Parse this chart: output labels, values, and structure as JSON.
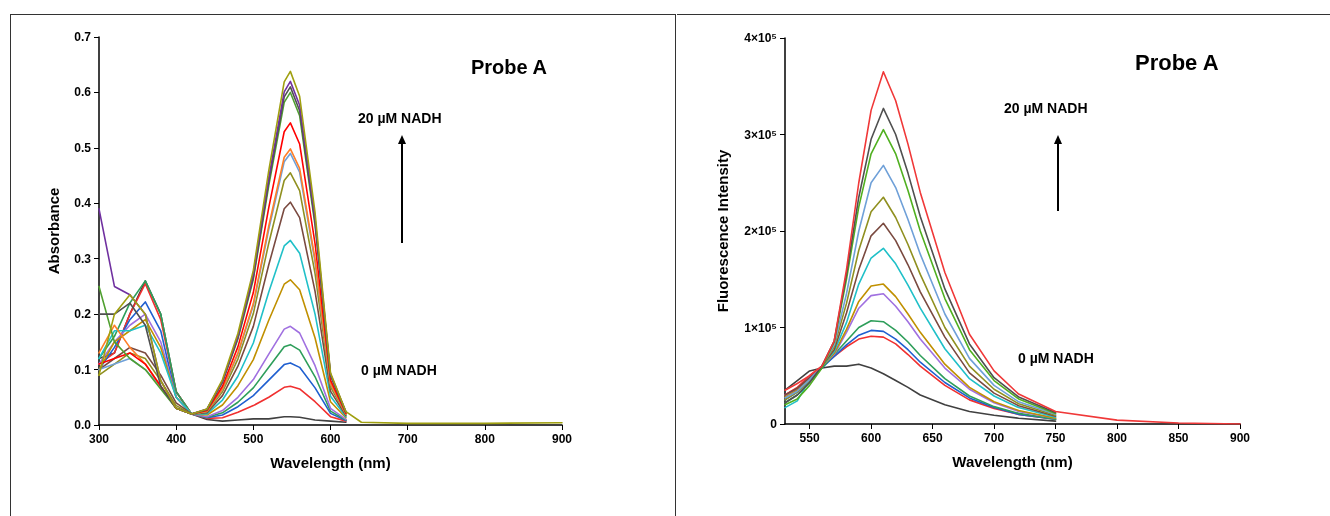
{
  "chart_data": [
    {
      "type": "line",
      "xlabel": "Wavelength (nm)",
      "ylabel": "Absorbance",
      "annotations": [
        "Probe A",
        "20 µM NADH",
        "0 µM NADH"
      ],
      "xlim": [
        300,
        900
      ],
      "xticks": [
        300,
        400,
        500,
        600,
        700,
        800,
        900
      ],
      "ylim": [
        0,
        0.7
      ],
      "yticks": [
        {
          "value": 0,
          "label": "0.0"
        },
        0.1,
        0.2,
        0.3,
        0.4,
        0.5,
        0.6,
        0.7
      ],
      "grid": false,
      "marker": "none",
      "line_style": "solid",
      "x": [
        300,
        320,
        340,
        360,
        380,
        400,
        420,
        440,
        460,
        480,
        500,
        520,
        540,
        548,
        560,
        580,
        600,
        620,
        640,
        700,
        800,
        900
      ],
      "series": [
        {
          "color": "#404040",
          "values": [
            0.12,
            0.13,
            0.2,
            0.26,
            0.2,
            0.06,
            0.02,
            0.01,
            0.007,
            0.009,
            0.011,
            0.011,
            0.015,
            0.015,
            0.014,
            0.009,
            0.007,
            0.005,
            null,
            null,
            null,
            null
          ]
        },
        {
          "color": "#f03030",
          "values": [
            0.11,
            0.13,
            0.2,
            0.255,
            0.19,
            0.06,
            0.02,
            0.012,
            0.013,
            0.023,
            0.035,
            0.05,
            0.068,
            0.07,
            0.065,
            0.042,
            0.015,
            0.007,
            null,
            null,
            null,
            null
          ]
        },
        {
          "color": "#1f5fd0",
          "values": [
            0.1,
            0.14,
            0.19,
            0.222,
            0.17,
            0.05,
            0.02,
            0.013,
            0.018,
            0.033,
            0.053,
            0.081,
            0.109,
            0.112,
            0.104,
            0.067,
            0.021,
            0.008,
            null,
            null,
            null,
            null
          ]
        },
        {
          "color": "#2e9e5a",
          "values": [
            0.12,
            0.16,
            0.22,
            0.26,
            0.2,
            0.06,
            0.02,
            0.014,
            0.022,
            0.041,
            0.067,
            0.104,
            0.141,
            0.145,
            0.135,
            0.087,
            0.025,
            0.009,
            null,
            null,
            null,
            null
          ]
        },
        {
          "color": "#a070e0",
          "values": [
            0.11,
            0.15,
            0.18,
            0.2,
            0.15,
            0.05,
            0.02,
            0.015,
            0.026,
            0.05,
            0.082,
            0.128,
            0.173,
            0.178,
            0.166,
            0.107,
            0.03,
            0.01,
            null,
            null,
            null,
            null
          ]
        },
        {
          "color": "#c09000",
          "values": [
            0.1,
            0.15,
            0.17,
            0.19,
            0.14,
            0.05,
            0.02,
            0.018,
            0.036,
            0.071,
            0.118,
            0.189,
            0.254,
            0.262,
            0.244,
            0.157,
            0.042,
            0.013,
            null,
            null,
            null,
            null
          ]
        },
        {
          "color": "#20c0c8",
          "values": [
            0.12,
            0.17,
            0.17,
            0.18,
            0.13,
            0.05,
            0.02,
            0.02,
            0.045,
            0.088,
            0.148,
            0.24,
            0.323,
            0.333,
            0.31,
            0.2,
            0.052,
            0.015,
            null,
            null,
            null,
            null
          ]
        },
        {
          "color": "#7a4a40",
          "values": [
            0.1,
            0.12,
            0.14,
            0.13,
            0.09,
            0.04,
            0.02,
            0.022,
            0.053,
            0.106,
            0.178,
            0.289,
            0.39,
            0.402,
            0.374,
            0.241,
            0.061,
            0.017,
            null,
            null,
            null,
            null
          ]
        },
        {
          "color": "#909020",
          "values": [
            0.09,
            0.11,
            0.13,
            0.12,
            0.08,
            0.035,
            0.02,
            0.024,
            0.06,
            0.119,
            0.201,
            0.328,
            0.441,
            0.455,
            0.423,
            0.273,
            0.069,
            0.019,
            null,
            null,
            null,
            null
          ]
        },
        {
          "color": "#6fa0d8",
          "values": [
            0.1,
            0.11,
            0.12,
            0.1,
            0.07,
            0.03,
            0.02,
            0.025,
            0.064,
            0.128,
            0.216,
            0.353,
            0.475,
            0.49,
            0.456,
            0.294,
            0.074,
            0.02,
            null,
            null,
            null,
            null
          ]
        },
        {
          "color": "#ff7f27",
          "values": [
            0.13,
            0.18,
            0.14,
            0.11,
            0.07,
            0.03,
            0.02,
            0.025,
            0.065,
            0.13,
            0.219,
            0.359,
            0.483,
            0.498,
            0.463,
            0.299,
            0.075,
            0.02,
            null,
            null,
            null,
            null
          ]
        },
        {
          "color": "#ff0000",
          "values": [
            0.11,
            0.12,
            0.13,
            0.11,
            0.07,
            0.03,
            0.02,
            0.026,
            0.07,
            0.141,
            0.239,
            0.392,
            0.529,
            0.545,
            0.507,
            0.327,
            0.081,
            0.021,
            null,
            null,
            null,
            null
          ]
        },
        {
          "color": "#50a030",
          "values": [
            0.25,
            0.15,
            0.12,
            0.1,
            0.065,
            0.03,
            0.02,
            0.028,
            0.077,
            0.155,
            0.263,
            0.432,
            0.582,
            0.6,
            0.558,
            0.36,
            0.089,
            0.023,
            null,
            null,
            null,
            null
          ]
        },
        {
          "color": "#505050",
          "values": [
            0.2,
            0.2,
            0.22,
            0.18,
            0.07,
            0.03,
            0.02,
            0.028,
            0.078,
            0.158,
            0.267,
            0.439,
            0.592,
            0.61,
            0.567,
            0.366,
            0.09,
            0.023,
            null,
            null,
            null,
            null
          ]
        },
        {
          "color": "#7030a0",
          "values": [
            0.39,
            0.25,
            0.235,
            0.2,
            0.08,
            0.03,
            0.02,
            0.029,
            0.079,
            0.16,
            0.272,
            0.446,
            0.601,
            0.62,
            0.577,
            0.372,
            0.092,
            0.024,
            null,
            null,
            null,
            null
          ]
        },
        {
          "color": "#a0a010",
          "values": [
            0.09,
            0.2,
            0.235,
            0.2,
            0.08,
            0.03,
            0.02,
            0.029,
            0.082,
            0.165,
            0.279,
            0.459,
            0.619,
            0.638,
            0.593,
            0.383,
            0.094,
            0.024,
            0.005,
            0.003,
            0.003,
            0.004
          ]
        }
      ]
    },
    {
      "type": "line",
      "xlabel": "Wavelength (nm)",
      "ylabel": "Fluorescence Intensity",
      "annotations": [
        "Probe A",
        "20 µM NADH",
        "0 µM NADH"
      ],
      "xlim": [
        530,
        900
      ],
      "xticks": [
        550,
        600,
        650,
        700,
        750,
        800,
        850,
        900
      ],
      "ylim": [
        0,
        400000
      ],
      "yticks": [
        0,
        {
          "value": 100000,
          "label": "1×10⁵"
        },
        {
          "value": 200000,
          "label": "2×10⁵"
        },
        {
          "value": 300000,
          "label": "3×10⁵"
        },
        {
          "value": 400000,
          "label": "4×10⁵"
        }
      ],
      "grid": false,
      "marker": "none",
      "line_style": "solid",
      "x": [
        530,
        540,
        550,
        560,
        570,
        580,
        590,
        600,
        610,
        620,
        630,
        640,
        660,
        680,
        700,
        720,
        750,
        800,
        850,
        900
      ],
      "series": [
        {
          "color": "#404040",
          "values": [
            35000,
            45000,
            55000,
            58000,
            60000,
            60000,
            62000,
            58000,
            52000,
            45000,
            38000,
            30000,
            20000,
            13000,
            9000,
            6000,
            3000,
            null,
            null,
            null
          ]
        },
        {
          "color": "#f03030",
          "values": [
            30000,
            38000,
            50000,
            60000,
            70000,
            80000,
            88000,
            91000,
            90000,
            83000,
            72000,
            60000,
            40000,
            25000,
            16000,
            10000,
            5000,
            null,
            null,
            null
          ]
        },
        {
          "color": "#1f5fd0",
          "values": [
            25000,
            33000,
            45000,
            58000,
            70000,
            82000,
            92000,
            97000,
            96000,
            88000,
            77000,
            64000,
            43000,
            27000,
            17000,
            10000,
            5000,
            null,
            null,
            null
          ]
        },
        {
          "color": "#2e9e5a",
          "values": [
            22000,
            30000,
            43000,
            58000,
            72000,
            86000,
            100000,
            107000,
            106000,
            97000,
            85000,
            71000,
            47000,
            29000,
            18000,
            11000,
            5000,
            null,
            null,
            null
          ]
        },
        {
          "color": "#a070e0",
          "values": [
            30000,
            36000,
            48000,
            60000,
            72000,
            95000,
            120000,
            133000,
            135000,
            122000,
            106000,
            88000,
            58000,
            36000,
            22000,
            13000,
            6000,
            null,
            null,
            null
          ]
        },
        {
          "color": "#c09000",
          "values": [
            28000,
            35000,
            47000,
            60000,
            73000,
            98000,
            127000,
            143000,
            145000,
            132000,
            114000,
            95000,
            62000,
            38000,
            23000,
            14000,
            6000,
            null,
            null,
            null
          ]
        },
        {
          "color": "#20c0c8",
          "values": [
            17000,
            24000,
            46000,
            60000,
            75000,
            105000,
            145000,
            172000,
            182000,
            166000,
            144000,
            120000,
            78000,
            47000,
            29000,
            17000,
            7000,
            null,
            null,
            null
          ]
        },
        {
          "color": "#7a4a40",
          "values": [
            30000,
            37000,
            48000,
            60000,
            77000,
            115000,
            160000,
            195000,
            208000,
            190000,
            165000,
            137000,
            90000,
            53000,
            32000,
            19000,
            8000,
            null,
            null,
            null
          ]
        },
        {
          "color": "#909020",
          "values": [
            25000,
            33000,
            45000,
            60000,
            80000,
            125000,
            180000,
            220000,
            235000,
            214000,
            186000,
            155000,
            100000,
            60000,
            36000,
            21000,
            9000,
            null,
            null,
            null
          ]
        },
        {
          "color": "#6fa0d8",
          "values": [
            27000,
            34000,
            46000,
            60000,
            82000,
            135000,
            200000,
            250000,
            268000,
            245000,
            212000,
            176000,
            114000,
            68000,
            40000,
            23000,
            10000,
            null,
            null,
            null
          ]
        },
        {
          "color": "#50b020",
          "values": [
            20000,
            26000,
            40000,
            58000,
            85000,
            150000,
            225000,
            280000,
            305000,
            280000,
            242000,
            200000,
            130000,
            77000,
            45000,
            26000,
            11000,
            null,
            null,
            null
          ]
        },
        {
          "color": "#505050",
          "values": [
            22000,
            30000,
            43000,
            60000,
            86000,
            155000,
            235000,
            295000,
            327000,
            300000,
            260000,
            215000,
            140000,
            83000,
            48000,
            28000,
            12000,
            null,
            null,
            null
          ]
        },
        {
          "color": "#f03838",
          "values": [
            35000,
            42000,
            50000,
            60000,
            86000,
            160000,
            250000,
            325000,
            365000,
            335000,
            290000,
            240000,
            157000,
            93000,
            55000,
            31000,
            13000,
            4000,
            1000,
            0
          ]
        }
      ]
    }
  ]
}
